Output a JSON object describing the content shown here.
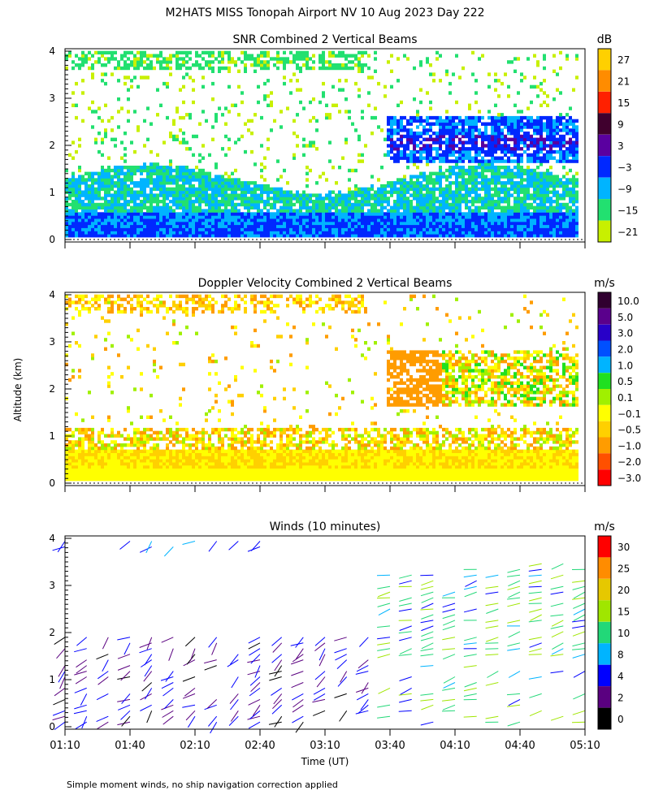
{
  "figure": {
    "title": "M2HATS MISS Tonopah Airport NV  10 Aug 2023 Day 222",
    "footnote": "Simple moment winds, no ship navigation correction applied",
    "y_axis_label": "Altitude (km)",
    "x_axis_label": "Time (UT)"
  },
  "chart_data": [
    {
      "type": "heatmap",
      "title": "SNR Combined 2 Vertical Beams",
      "colorbar_unit": "dB",
      "colorbar_labels": [
        "27",
        "21",
        "15",
        "9",
        "3",
        "−3",
        "−9",
        "−15",
        "−21"
      ],
      "colorbar_colors": [
        "#ffd000",
        "#ff8c00",
        "#ff2000",
        "#40002e",
        "#5a00a0",
        "#0028ff",
        "#00b4ff",
        "#22e070",
        "#c8f000"
      ],
      "ylim": [
        0,
        4
      ],
      "yticks": [
        "0",
        "1",
        "2",
        "3",
        "4"
      ],
      "xlim": [
        "01:10",
        "05:10"
      ],
      "grid": false
    },
    {
      "type": "heatmap",
      "title": "Doppler Velocity Combined 2 Vertical Beams",
      "colorbar_unit": "m/s",
      "colorbar_labels": [
        "10.0",
        "5.0",
        "3.0",
        "2.0",
        "1.0",
        "0.5",
        "0.1",
        "−0.1",
        "−0.5",
        "−1.0",
        "−2.0",
        "−3.0"
      ],
      "colorbar_colors": [
        "#300030",
        "#5a008c",
        "#2800c8",
        "#0050ff",
        "#00b4ff",
        "#20e020",
        "#a0f000",
        "#ffff00",
        "#ffd000",
        "#ff9c00",
        "#ff5000",
        "#ff0000"
      ],
      "ylim": [
        0,
        4
      ],
      "yticks": [
        "0",
        "1",
        "2",
        "3",
        "4"
      ],
      "xlim": [
        "01:10",
        "05:10"
      ],
      "grid": false
    },
    {
      "type": "scatter",
      "title": "Winds (10 minutes)",
      "colorbar_unit": "m/s",
      "colorbar_labels": [
        "30",
        "25",
        "20",
        "15",
        "10",
        "8",
        "4",
        "2",
        "0"
      ],
      "colorbar_colors": [
        "#ff0000",
        "#ff8c00",
        "#e6c800",
        "#a0e600",
        "#22d878",
        "#00b4ff",
        "#0000ff",
        "#5a0080",
        "#000000"
      ],
      "ylim": [
        0,
        4
      ],
      "yticks": [
        "0",
        "1",
        "2",
        "3",
        "4"
      ],
      "xticks": [
        "01:10",
        "01:40",
        "02:10",
        "02:40",
        "03:10",
        "03:40",
        "04:10",
        "04:40",
        "05:10"
      ],
      "xlim": [
        "01:10",
        "05:10"
      ],
      "grid": false
    }
  ]
}
